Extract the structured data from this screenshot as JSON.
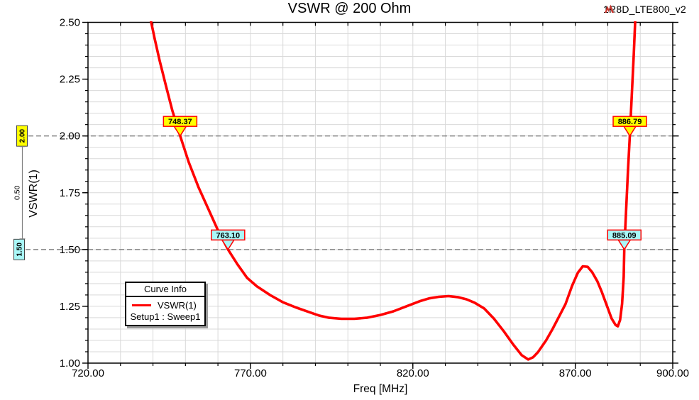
{
  "header": {
    "title": "VSWR @ 200 Ohm",
    "project": "1R8D_LTE800_v2",
    "logo_icon": "ansoft-logo"
  },
  "axes": {
    "x": {
      "label": "Freq [MHz]",
      "min": 720,
      "max": 900,
      "minor_step": 10,
      "major_ticks": [
        720,
        770,
        820,
        870,
        900
      ],
      "tick_labels": [
        "720.00",
        "770.00",
        "820.00",
        "870.00",
        "900.00"
      ]
    },
    "y": {
      "label": "VSWR(1)",
      "min": 1.0,
      "max": 2.5,
      "minor_step": 0.05,
      "major_ticks": [
        1.0,
        1.25,
        1.5,
        1.75,
        2.0,
        2.25,
        2.5
      ],
      "tick_labels": [
        "1.00",
        "1.25",
        "1.50",
        "1.75",
        "2.00",
        "2.25",
        "2.50"
      ]
    }
  },
  "legend": {
    "title": "Curve Info",
    "series_label": "VSWR(1)",
    "series_sub": "Setup1 : Sweep1"
  },
  "markers": [
    {
      "label": "748.37",
      "freq": 748.37,
      "value": 2.0,
      "color": "#ffff00",
      "shape": "triangle-down"
    },
    {
      "label": "886.79",
      "freq": 886.79,
      "value": 2.0,
      "color": "#ffff00",
      "shape": "triangle-down"
    },
    {
      "label": "763.10",
      "freq": 763.1,
      "value": 1.5,
      "color": "#a9f7f7",
      "shape": "triangle-down"
    },
    {
      "label": "885.09",
      "freq": 885.09,
      "value": 1.5,
      "color": "#a9f7f7",
      "shape": "triangle-down"
    }
  ],
  "ref_lines": [
    {
      "label": "2.00",
      "value": 2.0,
      "color": "#ffff00"
    },
    {
      "label": "1.50",
      "value": 1.5,
      "color": "#a9f7f7"
    }
  ],
  "delta": {
    "label": "0.50"
  },
  "colors": {
    "curve": "#ff0000",
    "grid": "#d9d9d9",
    "ref_dash": "#7f7f7f",
    "marker_border": "#ff0000",
    "frame": "#000000",
    "logo_red": "#c8362e",
    "logo_gray": "#9b9b9b"
  },
  "chart_data": {
    "type": "line",
    "title": "VSWR @ 200 Ohm",
    "xlabel": "Freq [MHz]",
    "ylabel": "VSWR(1)",
    "xlim": [
      720,
      900
    ],
    "ylim": [
      1.0,
      2.5
    ],
    "grid": true,
    "legend_position": "lower-left",
    "series": [
      {
        "name": "VSWR(1)",
        "sub": "Setup1 : Sweep1",
        "color": "#ff0000",
        "points": [
          [
            738.8,
            2.545
          ],
          [
            740.5,
            2.43
          ],
          [
            742,
            2.335
          ],
          [
            744,
            2.22
          ],
          [
            746,
            2.11
          ],
          [
            748.37,
            2.0
          ],
          [
            751,
            1.885
          ],
          [
            754,
            1.775
          ],
          [
            757,
            1.68
          ],
          [
            760,
            1.585
          ],
          [
            763.1,
            1.5
          ],
          [
            766,
            1.435
          ],
          [
            769,
            1.375
          ],
          [
            772,
            1.338
          ],
          [
            776,
            1.3
          ],
          [
            780,
            1.268
          ],
          [
            784,
            1.245
          ],
          [
            788,
            1.225
          ],
          [
            791,
            1.21
          ],
          [
            794,
            1.2
          ],
          [
            798,
            1.195
          ],
          [
            802,
            1.195
          ],
          [
            806,
            1.2
          ],
          [
            810,
            1.212
          ],
          [
            814,
            1.228
          ],
          [
            818,
            1.25
          ],
          [
            822,
            1.272
          ],
          [
            825,
            1.285
          ],
          [
            828,
            1.292
          ],
          [
            831,
            1.295
          ],
          [
            834,
            1.29
          ],
          [
            836.5,
            1.281
          ],
          [
            839,
            1.266
          ],
          [
            842,
            1.24
          ],
          [
            845,
            1.195
          ],
          [
            848,
            1.14
          ],
          [
            851,
            1.08
          ],
          [
            853.5,
            1.035
          ],
          [
            855.5,
            1.016
          ],
          [
            857,
            1.026
          ],
          [
            858.5,
            1.048
          ],
          [
            861,
            1.1
          ],
          [
            863,
            1.15
          ],
          [
            865,
            1.205
          ],
          [
            867,
            1.26
          ],
          [
            869,
            1.34
          ],
          [
            870.8,
            1.398
          ],
          [
            872.3,
            1.426
          ],
          [
            873.8,
            1.424
          ],
          [
            875.2,
            1.4
          ],
          [
            876.8,
            1.36
          ],
          [
            878.2,
            1.312
          ],
          [
            879.8,
            1.25
          ],
          [
            881.2,
            1.196
          ],
          [
            882.4,
            1.168
          ],
          [
            883.1,
            1.162
          ],
          [
            883.8,
            1.19
          ],
          [
            884.4,
            1.26
          ],
          [
            884.9,
            1.38
          ],
          [
            885.09,
            1.5
          ],
          [
            885.6,
            1.66
          ],
          [
            886.2,
            1.84
          ],
          [
            886.79,
            2.0
          ],
          [
            887.4,
            2.18
          ],
          [
            888,
            2.36
          ],
          [
            888.6,
            2.56
          ]
        ]
      }
    ],
    "marker_points": [
      {
        "label": "748.37",
        "x": 748.37,
        "y": 2.0
      },
      {
        "label": "763.10",
        "x": 763.1,
        "y": 1.5
      },
      {
        "label": "885.09",
        "x": 885.09,
        "y": 1.5
      },
      {
        "label": "886.79",
        "x": 886.79,
        "y": 2.0
      }
    ]
  }
}
